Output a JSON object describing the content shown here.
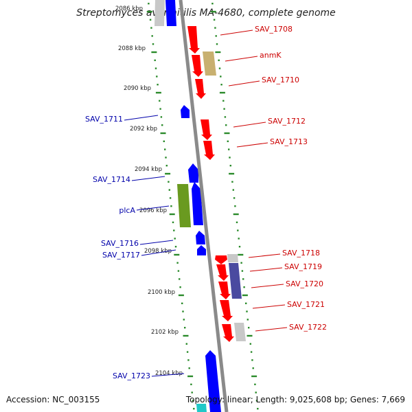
{
  "title": "Streptomyces avermitilis MA-4680, complete genome",
  "footer": {
    "accession": "Accession: NC_003155",
    "summary": "Topology: linear; Length: 9,025,608 bp; Genes: 7,669"
  },
  "colors": {
    "backbone": "#8a8a8a",
    "ticks": "#2a8a2a",
    "forward_label": "#cc0000",
    "reverse_label": "#0000aa",
    "red_gene": "#ff0000",
    "blue_gene": "#0000ff",
    "olive_gene": "#c8b070",
    "green_gene": "#6a9a20",
    "grey_gene": "#c8c8c8",
    "navy_gene": "#4a4aa0",
    "cyan_gene": "#20c8c8"
  },
  "ticks": [
    {
      "label": "2086 kbp"
    },
    {
      "label": "2088 kbp"
    },
    {
      "label": "2090 kbp"
    },
    {
      "label": "2092 kbp"
    },
    {
      "label": "2094 kbp"
    },
    {
      "label": "2096 kbp"
    },
    {
      "label": "2098 kbp"
    },
    {
      "label": "2100 kbp"
    },
    {
      "label": "2102 kbp"
    },
    {
      "label": "2104 kbp"
    }
  ],
  "forward_labels": [
    {
      "text": "SAV_1708"
    },
    {
      "text": "anmK"
    },
    {
      "text": "SAV_1710"
    },
    {
      "text": "SAV_1712"
    },
    {
      "text": "SAV_1713"
    },
    {
      "text": "SAV_1718"
    },
    {
      "text": "SAV_1719"
    },
    {
      "text": "SAV_1720"
    },
    {
      "text": "SAV_1721"
    },
    {
      "text": "SAV_1722"
    }
  ],
  "reverse_labels": [
    {
      "text": "SAV_1711"
    },
    {
      "text": "SAV_1714"
    },
    {
      "text": "plcA"
    },
    {
      "text": "SAV_1716"
    },
    {
      "text": "SAV_1717"
    },
    {
      "text": "SAV_1723"
    }
  ]
}
